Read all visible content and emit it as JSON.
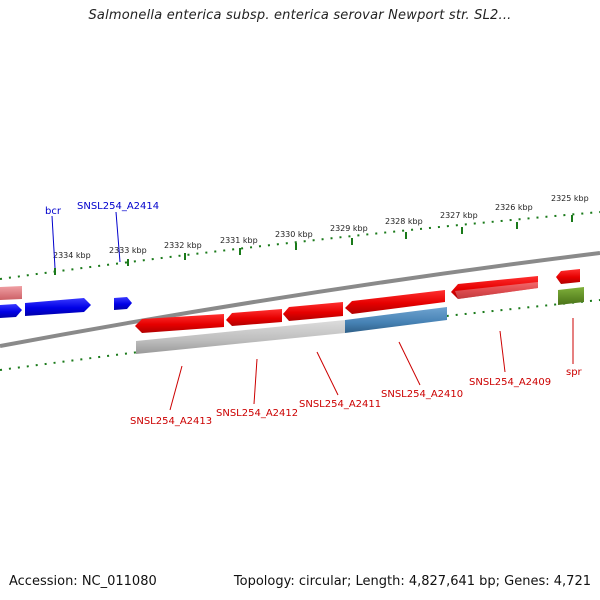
{
  "title": "Salmonella enterica subsp. enterica serovar Newport str. SL2...",
  "footer": {
    "accession": "Accession: NC_011080",
    "summary": "Topology: circular; Length: 4,827,641 bp; Genes: 4,721"
  },
  "ticks": [
    {
      "label": "2334 kbp"
    },
    {
      "label": "2333 kbp"
    },
    {
      "label": "2332 kbp"
    },
    {
      "label": "2331 kbp"
    },
    {
      "label": "2330 kbp"
    },
    {
      "label": "2329 kbp"
    },
    {
      "label": "2328 kbp"
    },
    {
      "label": "2327 kbp"
    },
    {
      "label": "2326 kbp"
    },
    {
      "label": "2325 kbp"
    }
  ],
  "top_labels": [
    {
      "text": "bcr"
    },
    {
      "text": "SNSL254_A2414"
    }
  ],
  "bottom_labels": [
    {
      "text": "SNSL254_A2413"
    },
    {
      "text": "SNSL254_A2412"
    },
    {
      "text": "SNSL254_A2411"
    },
    {
      "text": "SNSL254_A2410"
    },
    {
      "text": "SNSL254_A2409"
    },
    {
      "text": "spr"
    }
  ],
  "colors": {
    "forward_strand": "#0000e6",
    "reverse_strand": "#e60000",
    "pseudo_pink": "#e07a80",
    "gray_track": "#b8b8b8",
    "steel_blue": "#4682b4",
    "olive": "#5c8a1e",
    "tick_green": "#1a7a1a",
    "backbone": "#888888",
    "label_blue": "#0000cc",
    "label_red": "#cc0000"
  }
}
